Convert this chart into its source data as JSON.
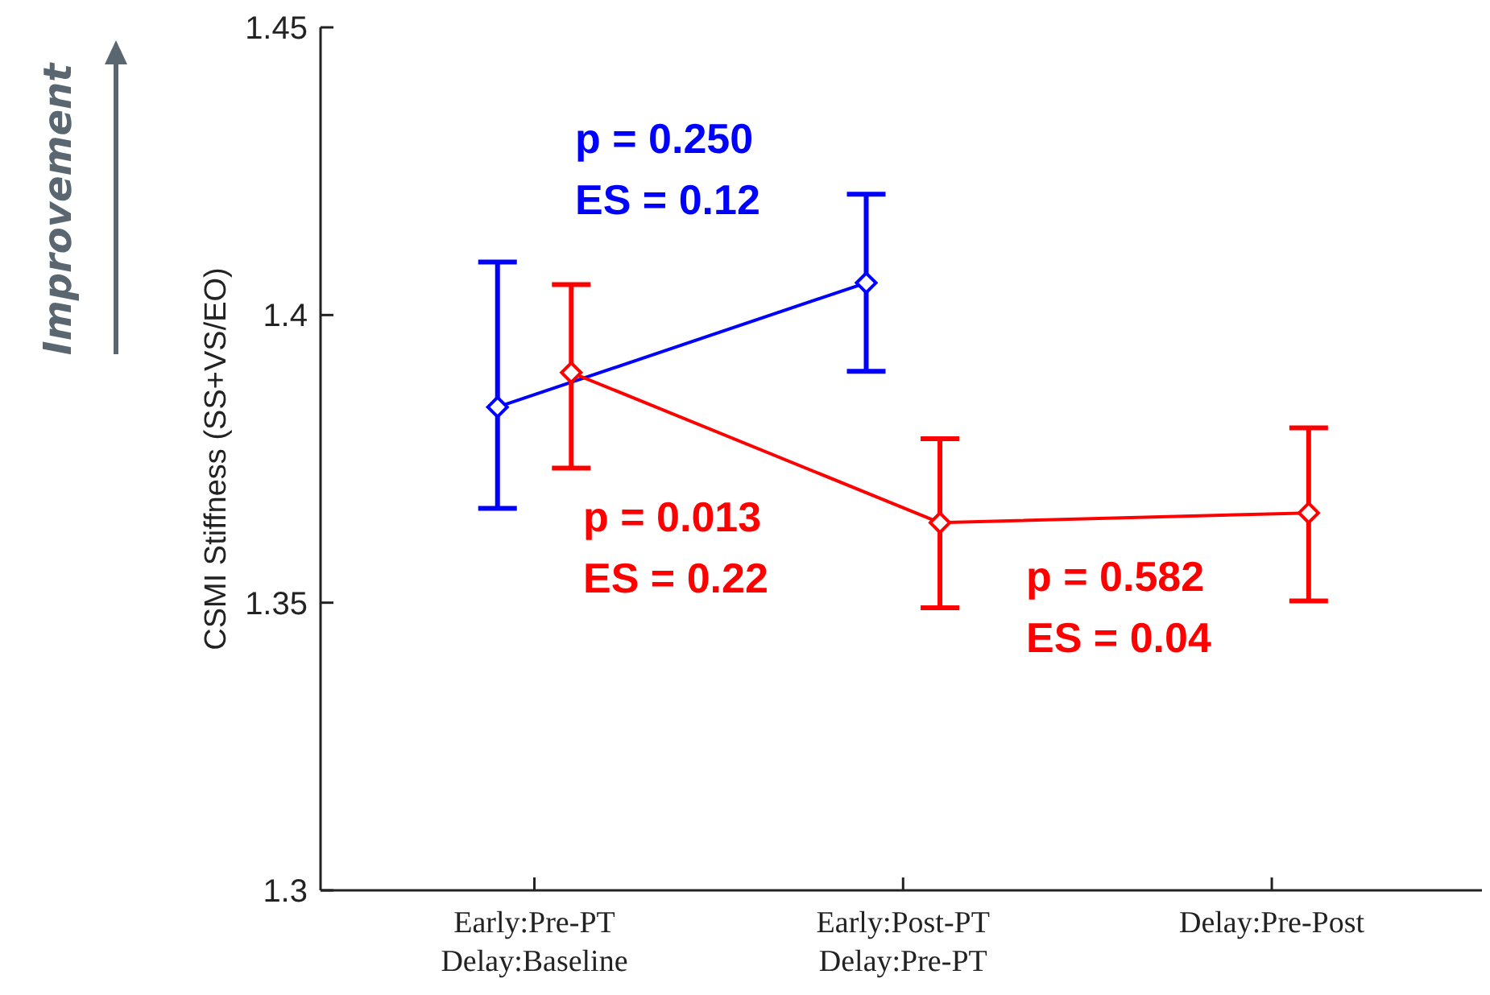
{
  "chart_data": {
    "type": "line",
    "ylabel": "CSMI Stiffness (SS+VS/EO)",
    "categories": [
      "Early:Pre-PT\nDelay:Baseline",
      "Early:Post-PT\nDelay:Pre-PT",
      "Delay:Pre-Post"
    ],
    "ylim": [
      1.3,
      1.45
    ],
    "yticks": [
      {
        "value": 1.3,
        "label": "1.3"
      },
      {
        "value": 1.35,
        "label": "1.35"
      },
      {
        "value": 1.4,
        "label": "1.4"
      },
      {
        "value": 1.45,
        "label": "1.45"
      }
    ],
    "series": [
      {
        "color": "#0000ff",
        "values": [
          1.384,
          1.4056,
          null
        ],
        "errors": [
          [
            1.3664,
            1.4092
          ],
          [
            1.3902,
            1.421
          ],
          null
        ]
      },
      {
        "color": "#ff0000",
        "values": [
          1.39,
          1.3639,
          1.3656
        ],
        "errors": [
          [
            1.3734,
            1.4053
          ],
          [
            1.3491,
            1.3785
          ],
          [
            1.3503,
            1.3804
          ]
        ]
      }
    ],
    "marker": "diamond",
    "line_style": "solid",
    "annotations": [
      "Improvement",
      "p = 0.250\nES = 0.12",
      "p = 0.013\nES = 0.22",
      "p = 0.582\nES = 0.04"
    ]
  }
}
